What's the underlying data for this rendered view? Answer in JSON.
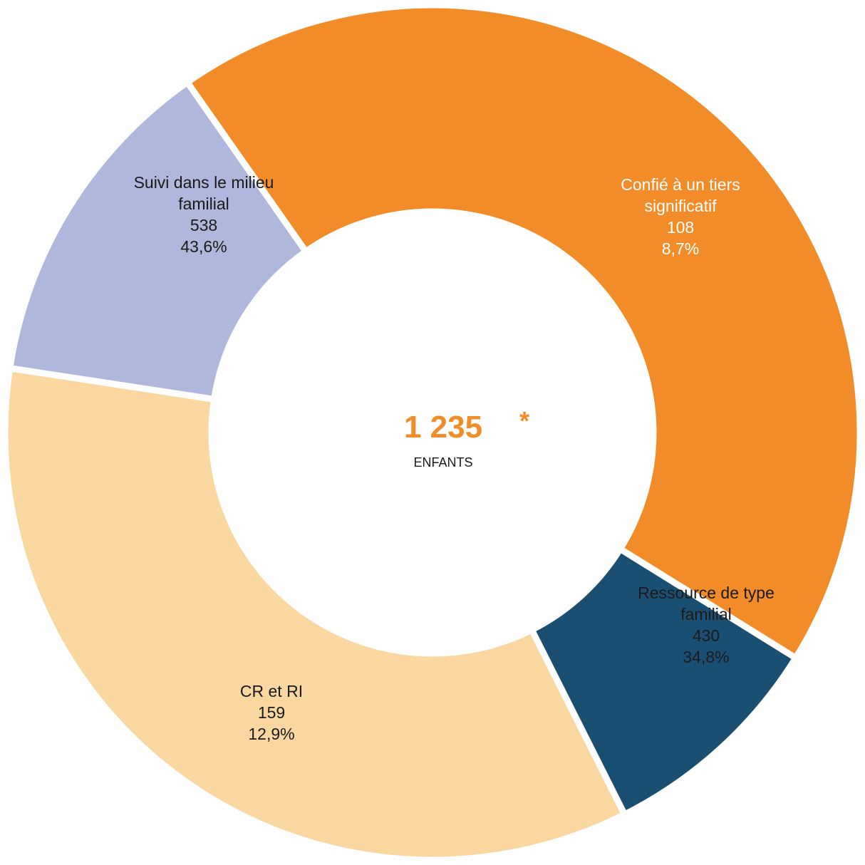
{
  "chart_data": {
    "type": "pie",
    "donut": true,
    "total": {
      "value": "1 235",
      "asterisk": "*",
      "unit": "ENFANTS"
    },
    "slices": [
      {
        "key": "suivi",
        "label_lines": [
          "Suivi dans le milieu",
          "familial"
        ],
        "value": 538,
        "value_text": "538",
        "percent": 43.6,
        "percent_text": "43,6%",
        "color": "#F28C28",
        "text_color": "#1a1a1a"
      },
      {
        "key": "tiers",
        "label_lines": [
          "Confié à un tiers",
          "significatif"
        ],
        "value": 108,
        "value_text": "108",
        "percent": 8.7,
        "percent_text": "8,7%",
        "color": "#1B4F72",
        "text_color": "#ffffff"
      },
      {
        "key": "rtf",
        "label_lines": [
          "Ressource de type",
          "familial"
        ],
        "value": 430,
        "value_text": "430",
        "percent": 34.8,
        "percent_text": "34,8%",
        "color": "#FAD7A0",
        "text_color": "#1a1a1a"
      },
      {
        "key": "crri",
        "label_lines": [
          "CR et RI"
        ],
        "value": 159,
        "value_text": "159",
        "percent": 12.9,
        "percent_text": "12,9%",
        "color": "#AFB8DC",
        "text_color": "#1a1a1a"
      }
    ],
    "center_color": "#F28C28"
  }
}
